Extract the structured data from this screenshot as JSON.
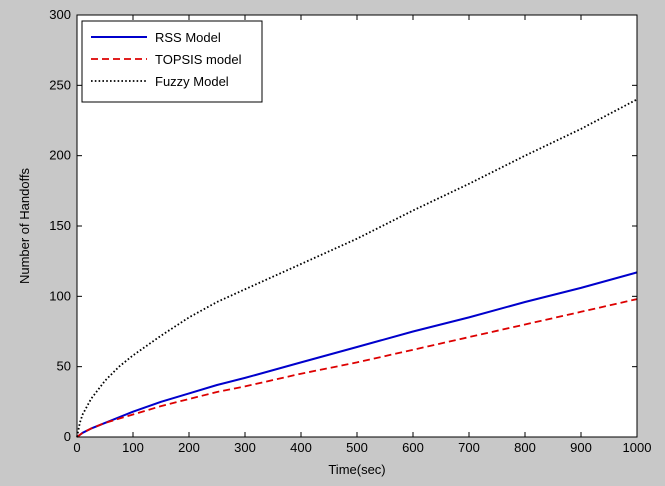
{
  "chart_data": {
    "type": "line",
    "title": "",
    "xlabel": "Time(sec)",
    "ylabel": "Number of Handoffs",
    "xlim": [
      0,
      1000
    ],
    "ylim": [
      0,
      300
    ],
    "xticks": [
      0,
      100,
      200,
      300,
      400,
      500,
      600,
      700,
      800,
      900,
      1000
    ],
    "yticks": [
      0,
      50,
      100,
      150,
      200,
      250,
      300
    ],
    "grid": false,
    "legend_position": "top-left",
    "series": [
      {
        "name": "RSS Model",
        "color": "#0000cc",
        "style": "solid",
        "x": [
          0,
          10,
          25,
          50,
          75,
          100,
          150,
          200,
          250,
          300,
          400,
          500,
          600,
          700,
          800,
          900,
          1000
        ],
        "y": [
          0,
          3,
          6,
          10,
          14,
          18,
          25,
          31,
          37,
          42,
          53,
          64,
          75,
          85,
          96,
          106,
          117
        ]
      },
      {
        "name": "TOPSIS model",
        "color": "#dd0000",
        "style": "dashed",
        "x": [
          0,
          10,
          25,
          50,
          75,
          100,
          150,
          200,
          250,
          300,
          400,
          500,
          600,
          700,
          800,
          900,
          1000
        ],
        "y": [
          0,
          3,
          6,
          10,
          13,
          16,
          22,
          27,
          32,
          36,
          45,
          53,
          62,
          71,
          80,
          89,
          98
        ]
      },
      {
        "name": "Fuzzy Model",
        "color": "#000000",
        "style": "dotted",
        "x": [
          0,
          5,
          10,
          25,
          50,
          75,
          100,
          150,
          200,
          250,
          300,
          400,
          500,
          600,
          700,
          800,
          900,
          1000
        ],
        "y": [
          0,
          10,
          16,
          27,
          40,
          50,
          58,
          72,
          85,
          96,
          105,
          123,
          141,
          161,
          180,
          200,
          219,
          240
        ]
      }
    ]
  }
}
